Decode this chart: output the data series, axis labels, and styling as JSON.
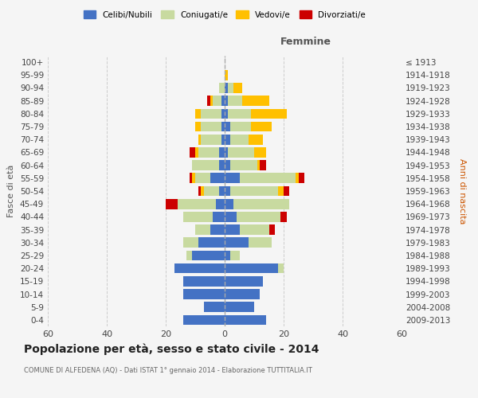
{
  "age_groups": [
    "0-4",
    "5-9",
    "10-14",
    "15-19",
    "20-24",
    "25-29",
    "30-34",
    "35-39",
    "40-44",
    "45-49",
    "50-54",
    "55-59",
    "60-64",
    "65-69",
    "70-74",
    "75-79",
    "80-84",
    "85-89",
    "90-94",
    "95-99",
    "100+"
  ],
  "birth_years": [
    "2009-2013",
    "2004-2008",
    "1999-2003",
    "1994-1998",
    "1989-1993",
    "1984-1988",
    "1979-1983",
    "1974-1978",
    "1969-1973",
    "1964-1968",
    "1959-1963",
    "1954-1958",
    "1949-1953",
    "1944-1948",
    "1939-1943",
    "1934-1938",
    "1929-1933",
    "1924-1928",
    "1919-1923",
    "1914-1918",
    "≤ 1913"
  ],
  "male": {
    "celibi": [
      14,
      7,
      14,
      14,
      17,
      11,
      9,
      5,
      4,
      3,
      2,
      5,
      2,
      2,
      1,
      1,
      1,
      1,
      0,
      0,
      0
    ],
    "coniugati": [
      0,
      0,
      0,
      0,
      0,
      2,
      5,
      5,
      10,
      13,
      5,
      5,
      9,
      7,
      7,
      7,
      7,
      3,
      2,
      0,
      0
    ],
    "vedovi": [
      0,
      0,
      0,
      0,
      0,
      0,
      0,
      0,
      0,
      0,
      1,
      1,
      0,
      1,
      1,
      2,
      2,
      1,
      0,
      0,
      0
    ],
    "divorziati": [
      0,
      0,
      0,
      0,
      0,
      0,
      0,
      0,
      0,
      4,
      1,
      1,
      0,
      2,
      0,
      0,
      0,
      1,
      0,
      0,
      0
    ]
  },
  "female": {
    "nubili": [
      14,
      10,
      12,
      13,
      18,
      2,
      8,
      5,
      4,
      3,
      2,
      5,
      2,
      1,
      2,
      2,
      1,
      1,
      1,
      0,
      0
    ],
    "coniugate": [
      0,
      0,
      0,
      0,
      2,
      3,
      8,
      10,
      15,
      19,
      16,
      19,
      9,
      9,
      6,
      7,
      8,
      5,
      2,
      0,
      0
    ],
    "vedove": [
      0,
      0,
      0,
      0,
      0,
      0,
      0,
      0,
      0,
      0,
      2,
      1,
      1,
      4,
      5,
      7,
      12,
      9,
      3,
      1,
      0
    ],
    "divorziate": [
      0,
      0,
      0,
      0,
      0,
      0,
      0,
      2,
      2,
      0,
      2,
      2,
      2,
      0,
      0,
      0,
      0,
      0,
      0,
      0,
      0
    ]
  },
  "color_celibi": "#4472c4",
  "color_coniugati": "#c8daa0",
  "color_vedovi": "#ffc000",
  "color_divorziati": "#cc0000",
  "xlim": 60,
  "title": "Popolazione per età, sesso e stato civile - 2014",
  "subtitle": "COMUNE DI ALFEDENA (AQ) - Dati ISTAT 1° gennaio 2014 - Elaborazione TUTTITALIA.IT",
  "ylabel_left": "Fasce di età",
  "ylabel_right": "Anni di nascita",
  "xlabel_right": "Femmine",
  "bg_color": "#f5f5f5",
  "grid_color": "#cccccc",
  "legend_labels": [
    "Celibi/Nubili",
    "Coniugati/e",
    "Vedovi/e",
    "Divorziati/e"
  ]
}
